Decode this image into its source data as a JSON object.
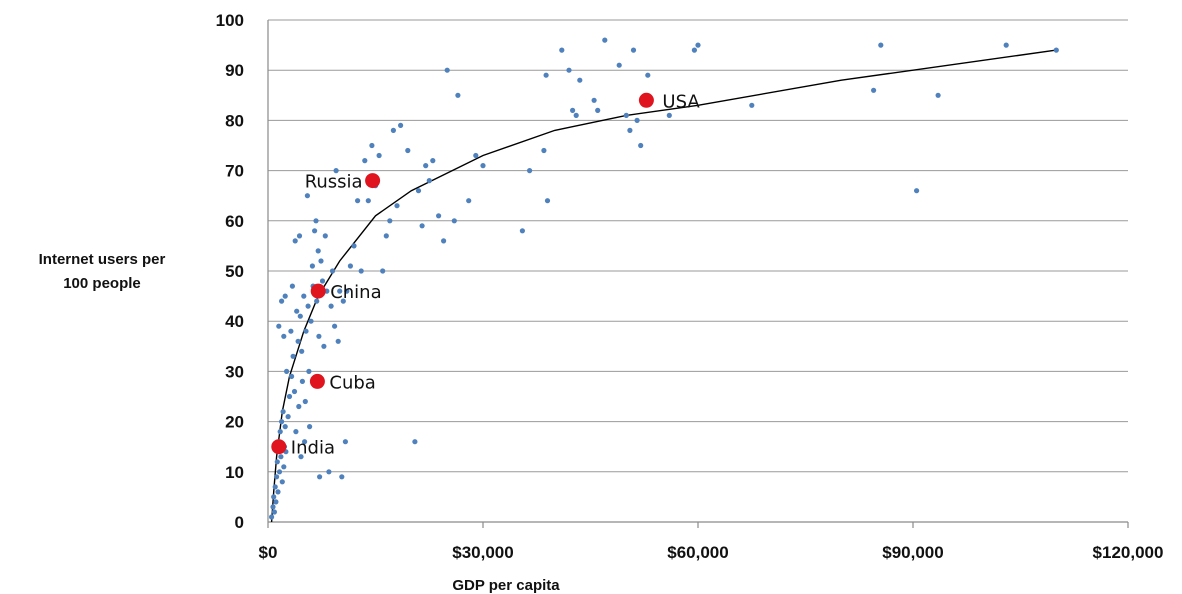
{
  "chart_data": {
    "type": "scatter",
    "title": "",
    "xlabel": "GDP per capita",
    "ylabel_lines": [
      "Internet users per",
      "100 people"
    ],
    "xlim": [
      0,
      120000
    ],
    "ylim": [
      0,
      100
    ],
    "xticks": [
      0,
      30000,
      60000,
      90000,
      120000
    ],
    "xtick_labels": [
      "$0",
      "$30,000",
      "$60,000",
      "$90,000",
      "$120,000"
    ],
    "yticks": [
      0,
      10,
      20,
      30,
      40,
      50,
      60,
      70,
      80,
      90,
      100
    ],
    "ytick_labels": [
      "0",
      "10",
      "20",
      "30",
      "40",
      "50",
      "60",
      "70",
      "80",
      "90",
      "100"
    ],
    "grid": "horizontal",
    "colors": {
      "points": "#4f81bd",
      "highlight": "#e0141e",
      "trend": "#000000",
      "grid": "#9a9a9a"
    },
    "points": [
      [
        500,
        1
      ],
      [
        700,
        3
      ],
      [
        800,
        5
      ],
      [
        900,
        2
      ],
      [
        1000,
        7
      ],
      [
        1100,
        4
      ],
      [
        1200,
        9
      ],
      [
        1300,
        12
      ],
      [
        1400,
        6
      ],
      [
        1500,
        16
      ],
      [
        1600,
        10
      ],
      [
        1700,
        18
      ],
      [
        1800,
        13
      ],
      [
        1900,
        20
      ],
      [
        2000,
        8
      ],
      [
        2100,
        22
      ],
      [
        2200,
        11
      ],
      [
        2300,
        15
      ],
      [
        2400,
        19
      ],
      [
        2500,
        14
      ],
      [
        1500,
        39
      ],
      [
        1900,
        44
      ],
      [
        2200,
        37
      ],
      [
        2400,
        45
      ],
      [
        2600,
        30
      ],
      [
        2800,
        21
      ],
      [
        3000,
        25
      ],
      [
        3200,
        38
      ],
      [
        3300,
        29
      ],
      [
        3400,
        47
      ],
      [
        3500,
        33
      ],
      [
        3700,
        26
      ],
      [
        3800,
        56
      ],
      [
        3900,
        18
      ],
      [
        4000,
        42
      ],
      [
        4200,
        36
      ],
      [
        4300,
        23
      ],
      [
        4400,
        57
      ],
      [
        4500,
        41
      ],
      [
        4600,
        13
      ],
      [
        4700,
        34
      ],
      [
        4800,
        28
      ],
      [
        5000,
        45
      ],
      [
        5100,
        16
      ],
      [
        5200,
        24
      ],
      [
        5300,
        38
      ],
      [
        5500,
        65
      ],
      [
        5600,
        43
      ],
      [
        5700,
        30
      ],
      [
        5800,
        19
      ],
      [
        6000,
        40
      ],
      [
        6200,
        51
      ],
      [
        6300,
        47
      ],
      [
        6500,
        58
      ],
      [
        6700,
        60
      ],
      [
        6800,
        44
      ],
      [
        7000,
        54
      ],
      [
        7100,
        37
      ],
      [
        7200,
        9
      ],
      [
        7400,
        52
      ],
      [
        7600,
        48
      ],
      [
        7800,
        35
      ],
      [
        8000,
        57
      ],
      [
        8200,
        46
      ],
      [
        8500,
        10
      ],
      [
        8800,
        43
      ],
      [
        9000,
        50
      ],
      [
        9300,
        39
      ],
      [
        9500,
        70
      ],
      [
        9800,
        36
      ],
      [
        10000,
        46
      ],
      [
        10300,
        9
      ],
      [
        10500,
        44
      ],
      [
        10800,
        16
      ],
      [
        11000,
        46
      ],
      [
        11500,
        51
      ],
      [
        12000,
        55
      ],
      [
        12500,
        64
      ],
      [
        13000,
        50
      ],
      [
        13500,
        72
      ],
      [
        14000,
        64
      ],
      [
        14500,
        75
      ],
      [
        15000,
        67
      ],
      [
        15500,
        73
      ],
      [
        16000,
        50
      ],
      [
        16500,
        57
      ],
      [
        17000,
        60
      ],
      [
        17500,
        78
      ],
      [
        18000,
        63
      ],
      [
        18500,
        79
      ],
      [
        19500,
        74
      ],
      [
        20500,
        16
      ],
      [
        21000,
        66
      ],
      [
        21500,
        59
      ],
      [
        22000,
        71
      ],
      [
        22500,
        68
      ],
      [
        23000,
        72
      ],
      [
        23800,
        61
      ],
      [
        24500,
        56
      ],
      [
        25000,
        90
      ],
      [
        26000,
        60
      ],
      [
        26500,
        85
      ],
      [
        28000,
        64
      ],
      [
        29000,
        73
      ],
      [
        30000,
        71
      ],
      [
        35500,
        58
      ],
      [
        36500,
        70
      ],
      [
        38500,
        74
      ],
      [
        38800,
        89
      ],
      [
        39000,
        64
      ],
      [
        41000,
        94
      ],
      [
        42000,
        90
      ],
      [
        42500,
        82
      ],
      [
        43000,
        81
      ],
      [
        43500,
        88
      ],
      [
        45500,
        84
      ],
      [
        46000,
        82
      ],
      [
        47000,
        96
      ],
      [
        49000,
        91
      ],
      [
        50000,
        81
      ],
      [
        50500,
        78
      ],
      [
        51000,
        94
      ],
      [
        51500,
        80
      ],
      [
        52000,
        75
      ],
      [
        53000,
        89
      ],
      [
        56000,
        81
      ],
      [
        59500,
        94
      ],
      [
        60000,
        95
      ],
      [
        67500,
        83
      ],
      [
        84500,
        86
      ],
      [
        85500,
        95
      ],
      [
        90500,
        66
      ],
      [
        93500,
        85
      ],
      [
        103000,
        95
      ],
      [
        110000,
        94
      ]
    ],
    "highlighted": [
      {
        "label": "USA",
        "x": 52800,
        "y": 84
      },
      {
        "label": "Russia",
        "x": 14600,
        "y": 68
      },
      {
        "label": "China",
        "x": 7000,
        "y": 46
      },
      {
        "label": "Cuba",
        "x": 6900,
        "y": 28
      },
      {
        "label": "India",
        "x": 1500,
        "y": 15
      }
    ],
    "trendline": {
      "type": "logarithmic",
      "x": [
        500,
        800,
        1200,
        2000,
        3000,
        5000,
        7000,
        10000,
        15000,
        20000,
        30000,
        40000,
        50000,
        60000,
        80000,
        110000
      ],
      "y": [
        0,
        6,
        13,
        22,
        29,
        38,
        45,
        52,
        61,
        66,
        73,
        78,
        81,
        83,
        88,
        94
      ]
    }
  }
}
